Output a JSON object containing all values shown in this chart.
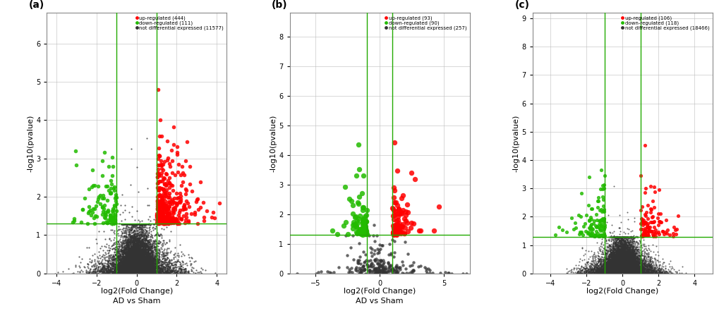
{
  "panels": [
    {
      "label": "(a)",
      "xlabel": "log2(Fold Change)",
      "xlabel2": "AD vs Sham",
      "ylabel": "-log10(pvalue)",
      "xlim": [
        -4.5,
        4.5
      ],
      "ylim": [
        0,
        6.8
      ],
      "xticks": [
        -4,
        -2,
        0,
        2,
        4
      ],
      "yticks": [
        0,
        1,
        2,
        3,
        4,
        5,
        6
      ],
      "vlines": [
        -1.0,
        1.0
      ],
      "hline": 1.3,
      "up_count": 444,
      "down_count": 111,
      "not_de_count": 11577,
      "seed": 42,
      "fc_threshold": 1.0,
      "pval_threshold": 1.3,
      "fc_spread": 1.0,
      "pval_spread": 0.7
    },
    {
      "label": "(b)",
      "xlabel": "log2(Fold Change)",
      "xlabel2": "AD vs Sham",
      "ylabel": "-log10(pvalue)",
      "xlim": [
        -7.0,
        7.0
      ],
      "ylim": [
        0,
        8.8
      ],
      "xticks": [
        -5,
        0,
        5
      ],
      "yticks": [
        0,
        1,
        2,
        3,
        4,
        5,
        6,
        7,
        8
      ],
      "vlines": [
        -1.0,
        1.0
      ],
      "hline": 1.3,
      "up_count": 93,
      "down_count": 90,
      "not_de_count": 257,
      "seed": 77,
      "fc_threshold": 1.0,
      "pval_threshold": 1.3,
      "fc_spread": 2.5,
      "pval_spread": 1.5
    },
    {
      "label": "(c)",
      "xlabel": "log2(Fold Change)",
      "xlabel2": "",
      "ylabel": "-log10(pvalue)",
      "xlim": [
        -5.0,
        5.0
      ],
      "ylim": [
        0,
        9.2
      ],
      "xticks": [
        -4,
        -2,
        0,
        2,
        4
      ],
      "yticks": [
        0,
        1,
        2,
        3,
        4,
        5,
        6,
        7,
        8,
        9
      ],
      "vlines": [
        -1.0,
        1.0
      ],
      "hline": 1.3,
      "up_count": 106,
      "down_count": 118,
      "not_de_count": 18466,
      "seed": 13,
      "fc_threshold": 1.0,
      "pval_threshold": 1.3,
      "fc_spread": 0.9,
      "pval_spread": 0.6
    }
  ],
  "colors": {
    "up": "#FF0000",
    "down": "#22BB00",
    "not_de": "#333333",
    "vline": "#22AA00",
    "hline": "#22AA00",
    "grid": "#BBBBBB"
  },
  "figsize": [
    10.2,
    4.51
  ],
  "dpi": 100
}
